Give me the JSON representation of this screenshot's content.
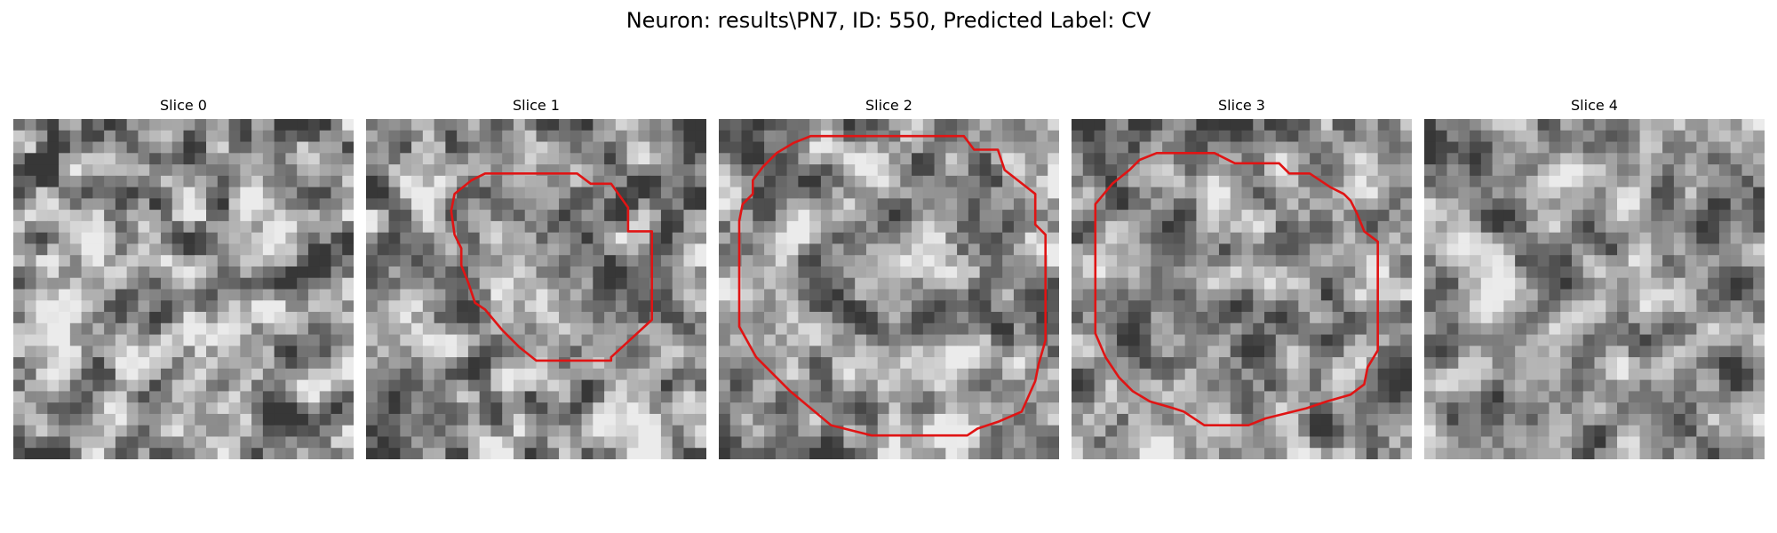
{
  "figure": {
    "title": "Neuron: results\\PN7, ID: 550, Predicted Label: CV",
    "contour_color": "#e01414"
  },
  "panels": [
    {
      "title": "Slice 0",
      "seed": 11,
      "contrast": 1.15,
      "contour": []
    },
    {
      "title": "Slice 1",
      "seed": 23,
      "contrast": 1.0,
      "contour": [
        [
          0.35,
          0.16
        ],
        [
          0.62,
          0.16
        ],
        [
          0.66,
          0.19
        ],
        [
          0.72,
          0.19
        ],
        [
          0.77,
          0.26
        ],
        [
          0.77,
          0.33
        ],
        [
          0.84,
          0.33
        ],
        [
          0.84,
          0.59
        ],
        [
          0.72,
          0.7
        ],
        [
          0.72,
          0.71
        ],
        [
          0.5,
          0.71
        ],
        [
          0.45,
          0.67
        ],
        [
          0.4,
          0.62
        ],
        [
          0.35,
          0.56
        ],
        [
          0.32,
          0.54
        ],
        [
          0.3,
          0.48
        ],
        [
          0.28,
          0.43
        ],
        [
          0.28,
          0.38
        ],
        [
          0.26,
          0.34
        ],
        [
          0.25,
          0.27
        ],
        [
          0.26,
          0.22
        ],
        [
          0.31,
          0.18
        ]
      ]
    },
    {
      "title": "Slice 2",
      "seed": 37,
      "contrast": 0.95,
      "contour": [
        [
          0.22,
          0.07
        ],
        [
          0.27,
          0.05
        ],
        [
          0.72,
          0.05
        ],
        [
          0.75,
          0.09
        ],
        [
          0.82,
          0.09
        ],
        [
          0.84,
          0.15
        ],
        [
          0.93,
          0.22
        ],
        [
          0.93,
          0.31
        ],
        [
          0.96,
          0.34
        ],
        [
          0.96,
          0.65
        ],
        [
          0.94,
          0.72
        ],
        [
          0.93,
          0.77
        ],
        [
          0.89,
          0.86
        ],
        [
          0.82,
          0.89
        ],
        [
          0.76,
          0.91
        ],
        [
          0.73,
          0.93
        ],
        [
          0.45,
          0.93
        ],
        [
          0.33,
          0.9
        ],
        [
          0.21,
          0.8
        ],
        [
          0.11,
          0.7
        ],
        [
          0.06,
          0.61
        ],
        [
          0.06,
          0.3
        ],
        [
          0.07,
          0.25
        ],
        [
          0.1,
          0.22
        ],
        [
          0.1,
          0.18
        ],
        [
          0.13,
          0.14
        ],
        [
          0.17,
          0.1
        ]
      ]
    },
    {
      "title": "Slice 3",
      "seed": 53,
      "contrast": 0.95,
      "contour": [
        [
          0.2,
          0.12
        ],
        [
          0.25,
          0.1
        ],
        [
          0.42,
          0.1
        ],
        [
          0.48,
          0.13
        ],
        [
          0.61,
          0.13
        ],
        [
          0.64,
          0.16
        ],
        [
          0.7,
          0.16
        ],
        [
          0.76,
          0.2
        ],
        [
          0.8,
          0.22
        ],
        [
          0.82,
          0.24
        ],
        [
          0.84,
          0.28
        ],
        [
          0.86,
          0.33
        ],
        [
          0.9,
          0.36
        ],
        [
          0.9,
          0.68
        ],
        [
          0.87,
          0.73
        ],
        [
          0.86,
          0.78
        ],
        [
          0.82,
          0.81
        ],
        [
          0.75,
          0.83
        ],
        [
          0.69,
          0.85
        ],
        [
          0.57,
          0.88
        ],
        [
          0.52,
          0.9
        ],
        [
          0.39,
          0.9
        ],
        [
          0.33,
          0.86
        ],
        [
          0.3,
          0.85
        ],
        [
          0.23,
          0.83
        ],
        [
          0.18,
          0.8
        ],
        [
          0.14,
          0.76
        ],
        [
          0.1,
          0.7
        ],
        [
          0.07,
          0.63
        ],
        [
          0.07,
          0.25
        ],
        [
          0.12,
          0.19
        ],
        [
          0.17,
          0.15
        ]
      ]
    },
    {
      "title": "Slice 4",
      "seed": 71,
      "contrast": 0.85,
      "contour": []
    }
  ]
}
